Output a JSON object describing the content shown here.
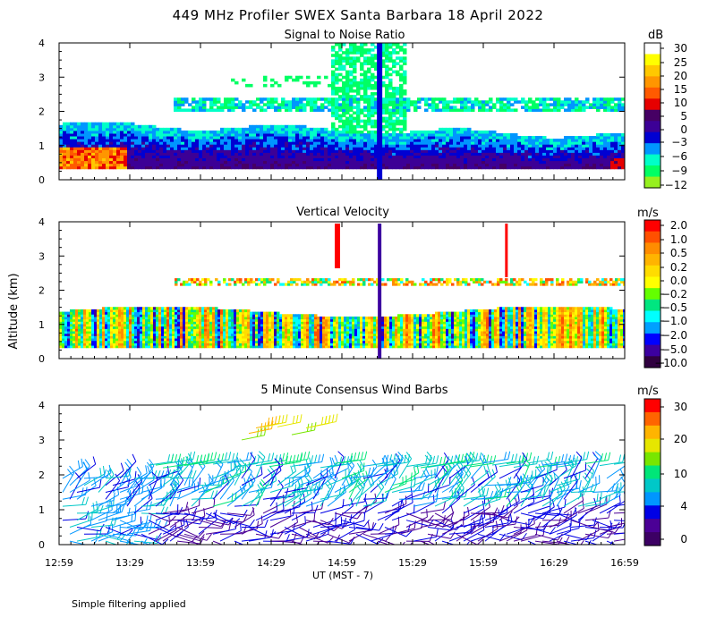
{
  "title": "449 MHz Profiler SWEX Santa Barbara 18 April 2022",
  "ylabel": "Altitude (km)",
  "xlabel": "UT  (MST - 7)",
  "footer": "Simple filtering applied",
  "x_ticks": [
    "12:59",
    "13:29",
    "13:59",
    "14:29",
    "14:59",
    "15:29",
    "15:59",
    "16:29",
    "16:59"
  ],
  "y_ticks": [
    "0",
    "1",
    "2",
    "3",
    "4"
  ],
  "chart_data": [
    {
      "type": "heatmap",
      "title": "Signal to Noise Ratio",
      "unit": "dB",
      "xlim": [
        "12:59",
        "16:59"
      ],
      "ylim": [
        0,
        4
      ],
      "colorbar_ticks": [
        "30",
        "25",
        "20",
        "15",
        "10",
        "5",
        "0",
        "−3",
        "−6",
        "−9",
        "−12"
      ],
      "colorbar_colors": [
        "#ffffff",
        "#ffff00",
        "#ffc800",
        "#ff9600",
        "#ff5a00",
        "#e60000",
        "#460064",
        "#3c0096",
        "#0000d2",
        "#0096ff",
        "#00ffc8",
        "#00ff64",
        "#96f01e"
      ],
      "features": [
        {
          "name": "boundary layer",
          "alt_km": [
            0.3,
            1.5
          ],
          "snr_db": [
            0,
            30
          ]
        },
        {
          "name": "elevated layer",
          "alt_km": [
            2.0,
            2.4
          ],
          "snr_db": [
            -12,
            -3
          ]
        },
        {
          "name": "vertical streak",
          "time": "15:15",
          "alt_km": [
            0.3,
            4.0
          ]
        }
      ]
    },
    {
      "type": "heatmap",
      "title": "Vertical Velocity",
      "unit": "m/s",
      "xlim": [
        "12:59",
        "16:59"
      ],
      "ylim": [
        0,
        4
      ],
      "colorbar_ticks": [
        "2.0",
        "1.0",
        "0.5",
        "0.2",
        "0.0",
        "−0.2",
        "−0.5",
        "−1.0",
        "−2.0",
        "−5.0",
        "−10.0"
      ],
      "colorbar_colors": [
        "#ff0000",
        "#ff5000",
        "#ff8c00",
        "#ffb400",
        "#ffdc00",
        "#ffff00",
        "#64ff00",
        "#00e680",
        "#00ffff",
        "#00a0ff",
        "#0000ff",
        "#3c00a0",
        "#300040"
      ],
      "features": [
        {
          "name": "boundary layer",
          "alt_km": [
            0.3,
            1.5
          ]
        },
        {
          "name": "elevated layer",
          "alt_km": [
            2.1,
            2.4
          ]
        }
      ]
    },
    {
      "type": "wind_barbs",
      "title": "5 Minute Consensus Wind Barbs",
      "unit": "m/s",
      "xlim": [
        "12:59",
        "16:59"
      ],
      "ylim": [
        0,
        4
      ],
      "colorbar_ticks": [
        "30",
        "20",
        "10",
        "4",
        "0"
      ],
      "colorbar_colors": [
        "#ff0000",
        "#ff6400",
        "#ffb400",
        "#e6e600",
        "#78e600",
        "#00e678",
        "#00c8c8",
        "#0096ff",
        "#0000e6",
        "#4b0096",
        "#3c0064"
      ]
    }
  ]
}
